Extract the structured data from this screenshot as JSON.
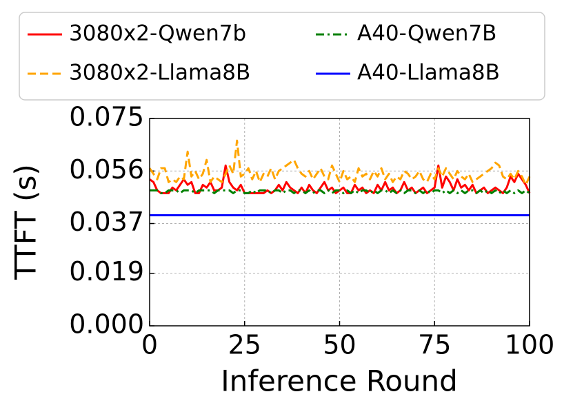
{
  "chart_data": {
    "type": "line",
    "xlabel": "Inference Round",
    "ylabel": "TTFT (s)",
    "x": [
      0,
      1,
      2,
      3,
      4,
      5,
      6,
      7,
      8,
      9,
      10,
      11,
      12,
      13,
      14,
      15,
      16,
      17,
      18,
      19,
      20,
      21,
      22,
      23,
      24,
      25,
      26,
      27,
      28,
      29,
      30,
      31,
      32,
      33,
      34,
      35,
      36,
      37,
      38,
      39,
      40,
      41,
      42,
      43,
      44,
      45,
      46,
      47,
      48,
      49,
      50,
      51,
      52,
      53,
      54,
      55,
      56,
      57,
      58,
      59,
      60,
      61,
      62,
      63,
      64,
      65,
      66,
      67,
      68,
      69,
      70,
      71,
      72,
      73,
      74,
      75,
      76,
      77,
      78,
      79,
      80,
      81,
      82,
      83,
      84,
      85,
      86,
      87,
      88,
      89,
      90,
      91,
      92,
      93,
      94,
      95,
      96,
      97,
      98,
      99,
      100
    ],
    "xlim": [
      0,
      100
    ],
    "xticks": [
      0,
      25,
      50,
      75,
      100
    ],
    "ylim": [
      0,
      0.075
    ],
    "yticks": [
      {
        "value": 0,
        "label": "0.000"
      },
      0.019,
      0.037,
      0.056,
      0.075
    ],
    "grid": true,
    "series": [
      {
        "name": "3080x2-Qwen7b",
        "color": "#ff0000",
        "style": "solid",
        "values": [
          0.053,
          0.052,
          0.049,
          0.048,
          0.048,
          0.048,
          0.05,
          0.049,
          0.051,
          0.053,
          0.051,
          0.052,
          0.048,
          0.048,
          0.051,
          0.05,
          0.052,
          0.049,
          0.049,
          0.05,
          0.058,
          0.052,
          0.05,
          0.049,
          0.051,
          0.048,
          0.048,
          0.048,
          0.048,
          0.048,
          0.048,
          0.049,
          0.048,
          0.049,
          0.051,
          0.049,
          0.052,
          0.05,
          0.049,
          0.048,
          0.05,
          0.048,
          0.051,
          0.049,
          0.048,
          0.05,
          0.052,
          0.049,
          0.05,
          0.048,
          0.049,
          0.05,
          0.048,
          0.048,
          0.051,
          0.049,
          0.05,
          0.048,
          0.049,
          0.048,
          0.051,
          0.049,
          0.052,
          0.049,
          0.05,
          0.048,
          0.049,
          0.052,
          0.049,
          0.05,
          0.048,
          0.049,
          0.05,
          0.048,
          0.049,
          0.05,
          0.058,
          0.05,
          0.054,
          0.052,
          0.049,
          0.053,
          0.05,
          0.051,
          0.049,
          0.051,
          0.048,
          0.049,
          0.05,
          0.048,
          0.049,
          0.05,
          0.049,
          0.048,
          0.05,
          0.054,
          0.052,
          0.055,
          0.053,
          0.051,
          0.048
        ]
      },
      {
        "name": "3080x2-Llama8B",
        "color": "#ffa500",
        "style": "dashed",
        "values": [
          0.057,
          0.055,
          0.053,
          0.057,
          0.057,
          0.052,
          0.053,
          0.052,
          0.054,
          0.053,
          0.063,
          0.054,
          0.056,
          0.053,
          0.055,
          0.06,
          0.052,
          0.054,
          0.053,
          0.052,
          0.055,
          0.058,
          0.055,
          0.067,
          0.054,
          0.055,
          0.057,
          0.053,
          0.056,
          0.052,
          0.055,
          0.054,
          0.057,
          0.053,
          0.056,
          0.057,
          0.058,
          0.059,
          0.06,
          0.057,
          0.055,
          0.054,
          0.056,
          0.053,
          0.055,
          0.057,
          0.054,
          0.053,
          0.058,
          0.055,
          0.052,
          0.056,
          0.053,
          0.054,
          0.052,
          0.057,
          0.054,
          0.055,
          0.053,
          0.056,
          0.054,
          0.057,
          0.053,
          0.055,
          0.052,
          0.054,
          0.053,
          0.056,
          0.055,
          0.053,
          0.054,
          0.056,
          0.053,
          0.052,
          0.055,
          0.053,
          0.057,
          0.054,
          0.057,
          0.055,
          0.053,
          0.056,
          0.054,
          0.053,
          0.055,
          0.052,
          0.053,
          0.054,
          0.055,
          0.056,
          0.057,
          0.059,
          0.058,
          0.054,
          0.053,
          0.055,
          0.053,
          0.056,
          0.054,
          0.051,
          0.054
        ]
      },
      {
        "name": "A40-Qwen7B",
        "color": "#008000",
        "style": "dashdot",
        "values": [
          0.049,
          0.049,
          0.049,
          0.048,
          0.048,
          0.049,
          0.049,
          0.049,
          0.048,
          0.049,
          0.049,
          0.049,
          0.048,
          0.049,
          0.049,
          0.049,
          0.049,
          0.048,
          0.049,
          0.049,
          0.049,
          0.049,
          0.048,
          0.049,
          0.049,
          0.048,
          0.048,
          0.049,
          0.048,
          0.049,
          0.049,
          0.049,
          0.048,
          0.049,
          0.049,
          0.048,
          0.049,
          0.049,
          0.048,
          0.049,
          0.049,
          0.048,
          0.049,
          0.048,
          0.049,
          0.049,
          0.048,
          0.049,
          0.048,
          0.049,
          0.049,
          0.048,
          0.049,
          0.048,
          0.049,
          0.048,
          0.049,
          0.049,
          0.048,
          0.049,
          0.048,
          0.049,
          0.049,
          0.048,
          0.049,
          0.048,
          0.049,
          0.048,
          0.049,
          0.049,
          0.048,
          0.049,
          0.048,
          0.049,
          0.048,
          0.049,
          0.049,
          0.048,
          0.049,
          0.048,
          0.049,
          0.048,
          0.049,
          0.048,
          0.049,
          0.049,
          0.048,
          0.049,
          0.048,
          0.049,
          0.048,
          0.049,
          0.048,
          0.049,
          0.048,
          0.049,
          0.048,
          0.049,
          0.048,
          0.049,
          0.048
        ]
      },
      {
        "name": "A40-Llama8B",
        "color": "#0000ff",
        "style": "solid",
        "values": [
          0.04,
          0.04,
          0.04,
          0.04,
          0.04,
          0.04,
          0.04,
          0.04,
          0.04,
          0.04,
          0.04,
          0.04,
          0.04,
          0.04,
          0.04,
          0.04,
          0.04,
          0.04,
          0.04,
          0.04,
          0.04,
          0.04,
          0.04,
          0.04,
          0.04,
          0.04,
          0.04,
          0.04,
          0.04,
          0.04,
          0.04,
          0.04,
          0.04,
          0.04,
          0.04,
          0.04,
          0.04,
          0.04,
          0.04,
          0.04,
          0.04,
          0.04,
          0.04,
          0.04,
          0.04,
          0.04,
          0.04,
          0.04,
          0.04,
          0.04,
          0.04,
          0.04,
          0.04,
          0.04,
          0.04,
          0.04,
          0.04,
          0.04,
          0.04,
          0.04,
          0.04,
          0.04,
          0.04,
          0.04,
          0.04,
          0.04,
          0.04,
          0.04,
          0.04,
          0.04,
          0.04,
          0.04,
          0.04,
          0.04,
          0.04,
          0.04,
          0.04,
          0.04,
          0.04,
          0.04,
          0.04,
          0.04,
          0.04,
          0.04,
          0.04,
          0.04,
          0.04,
          0.04,
          0.04,
          0.04,
          0.04,
          0.04,
          0.04,
          0.04,
          0.04,
          0.04,
          0.04,
          0.04,
          0.04,
          0.04,
          0.04
        ]
      }
    ]
  }
}
